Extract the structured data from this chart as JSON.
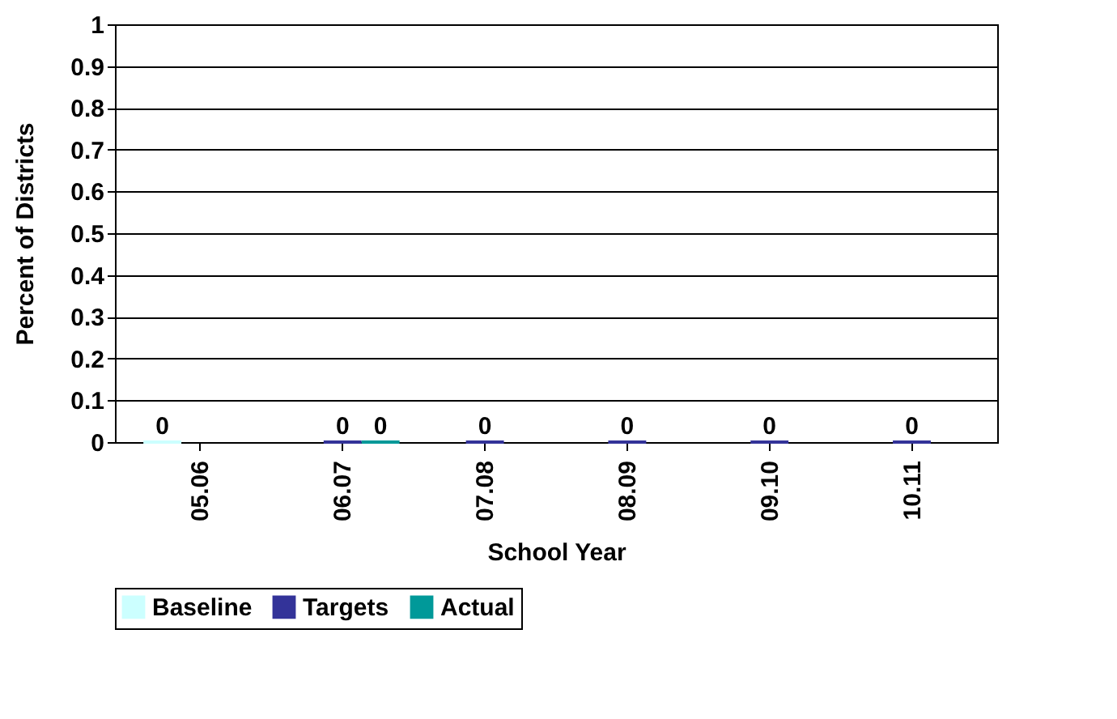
{
  "chart_data": {
    "type": "bar",
    "xlabel": "School Year",
    "ylabel": "Percent of Districts",
    "categories": [
      "05.06",
      "06.07",
      "07.08",
      "08.09",
      "09.10",
      "10.11"
    ],
    "series": [
      {
        "name": "Baseline",
        "color": "#ccffff",
        "values": [
          0,
          null,
          null,
          null,
          null,
          null
        ]
      },
      {
        "name": "Targets",
        "color": "#333399",
        "values": [
          null,
          0,
          0,
          0,
          0,
          0
        ]
      },
      {
        "name": "Actual",
        "color": "#009999",
        "values": [
          null,
          0,
          null,
          null,
          null,
          null
        ]
      }
    ],
    "ylim": [
      0,
      1
    ],
    "yticks": [
      0,
      0.1,
      0.2,
      0.3,
      0.4,
      0.5,
      0.6,
      0.7,
      0.8,
      0.9,
      1
    ],
    "grid": "y",
    "legend": "bottom",
    "data_labels": true
  }
}
